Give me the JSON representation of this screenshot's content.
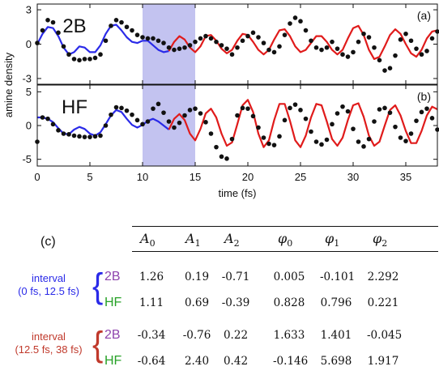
{
  "chart_data": [
    {
      "type": "line",
      "panel_label": "(a)",
      "tag": "2B",
      "xlim": [
        0,
        38
      ],
      "ylim": [
        -3.5,
        3.5
      ],
      "yticks": [
        -3,
        0,
        3
      ],
      "highlight_interval": [
        10,
        15
      ],
      "series": [
        {
          "color": "#2a2ae8",
          "x_range": [
            0,
            12.5
          ],
          "x": [
            0,
            0.5,
            1,
            1.5,
            2,
            2.5,
            3,
            3.5,
            4,
            4.5,
            5,
            5.5,
            6,
            6.5,
            7,
            7.5,
            8,
            8.5,
            9,
            9.5,
            10,
            10.5,
            11,
            11.5,
            12,
            12.5
          ],
          "y": [
            0,
            0.9,
            1.5,
            1.4,
            0.7,
            -0.3,
            -0.9,
            -0.7,
            -0.2,
            -0.3,
            -0.7,
            -0.7,
            -0.1,
            0.9,
            1.6,
            1.7,
            1.2,
            0.6,
            0.2,
            0.1,
            0.3,
            0.3,
            -0.1,
            -0.5,
            -0.7,
            -0.6
          ]
        },
        {
          "color": "#e01b1b",
          "x_range": [
            12.5,
            38
          ],
          "x": [
            12.5,
            13,
            13.5,
            14,
            14.5,
            15,
            15.5,
            16,
            16.5,
            17,
            17.5,
            18,
            18.5,
            19,
            19.5,
            20,
            20.5,
            21,
            21.5,
            22,
            22.5,
            23,
            23.5,
            24,
            24.5,
            25,
            25.5,
            26,
            26.5,
            27,
            27.5,
            28,
            28.5,
            29,
            29.5,
            30,
            30.5,
            31,
            31.5,
            32,
            32.5,
            33,
            33.5,
            34,
            34.5,
            35,
            35.5,
            36,
            36.5,
            37,
            37.5,
            38
          ],
          "y": [
            -0.6,
            0.2,
            0.7,
            0.4,
            -0.3,
            -0.7,
            -0.2,
            0.7,
            0.8,
            0.3,
            -0.4,
            -0.8,
            -0.5,
            0.3,
            0.9,
            0.8,
            0.2,
            -0.5,
            -0.9,
            -0.5,
            0.4,
            1.2,
            1.3,
            0.7,
            -0.2,
            -0.7,
            -0.5,
            0.1,
            0.7,
            0.7,
            0.2,
            -0.5,
            -0.9,
            -0.5,
            0.5,
            1.4,
            1.6,
            0.8,
            -0.5,
            -1.3,
            -1.1,
            -0.2,
            0.8,
            1.3,
            0.9,
            0.0,
            -0.8,
            -1.1,
            -0.5,
            0.5,
            1.1,
            1.2
          ]
        },
        {
          "color": "#111111",
          "marker": "dot",
          "x": [
            0,
            0.5,
            1,
            1.5,
            2,
            2.5,
            3,
            3.5,
            4,
            4.5,
            5,
            5.5,
            6,
            6.5,
            7,
            7.5,
            8,
            8.5,
            9,
            9.5,
            10,
            10.5,
            11,
            11.5,
            12,
            12.5,
            13,
            13.5,
            14,
            14.5,
            15,
            15.5,
            16,
            16.5,
            17,
            17.5,
            18,
            18.5,
            19,
            19.5,
            20,
            20.5,
            21,
            21.5,
            22,
            22.5,
            23,
            23.5,
            24,
            24.5,
            25,
            25.5,
            26,
            26.5,
            27,
            27.5,
            28,
            28.5,
            29,
            29.5,
            30,
            30.5,
            31,
            31.5,
            32,
            32.5,
            33,
            33.5,
            34,
            34.5,
            35,
            35.5,
            36,
            36.5,
            37,
            37.5,
            38
          ],
          "y": [
            0.1,
            1.2,
            2.1,
            1.9,
            1.0,
            -0.2,
            -0.9,
            -1.3,
            -1.4,
            -1.3,
            -1.3,
            -1.2,
            -0.9,
            0.3,
            1.6,
            2.1,
            1.9,
            1.5,
            1.2,
            0.8,
            0.6,
            0.5,
            0.5,
            0.3,
            0.1,
            -0.3,
            -0.5,
            -0.4,
            -0.3,
            -0.1,
            0.2,
            0.5,
            0.7,
            0.5,
            0.2,
            -0.1,
            -0.4,
            -0.9,
            -0.3,
            0.3,
            0.7,
            1.0,
            0.6,
            0.1,
            -0.5,
            -0.7,
            -0.2,
            0.8,
            1.8,
            2.3,
            2.0,
            1.2,
            0.3,
            -0.3,
            -0.5,
            -0.3,
            0.2,
            -0.4,
            -0.9,
            -1.1,
            -0.7,
            0.2,
            0.9,
            0.6,
            -0.3,
            -1.4,
            -2.3,
            -2.1,
            -1.0,
            0.4,
            0.9,
            0.3,
            -0.4,
            -0.9,
            -0.6,
            0.5,
            1.1
          ]
        }
      ]
    },
    {
      "type": "line",
      "panel_label": "(b)",
      "tag": "HF",
      "xlim": [
        0,
        38
      ],
      "ylim": [
        -6,
        6
      ],
      "yticks": [
        -5,
        0,
        5
      ],
      "xticks": [
        0,
        5,
        10,
        15,
        20,
        25,
        30,
        35
      ],
      "xlabel": "time (fs)",
      "shared_ylabel": "amine density",
      "highlight_interval": [
        10,
        15
      ],
      "series": [
        {
          "color": "#2a2ae8",
          "x_range": [
            0,
            12.5
          ],
          "x": [
            0,
            0.5,
            1,
            1.5,
            2,
            2.5,
            3,
            3.5,
            4,
            4.5,
            5,
            5.5,
            6,
            6.5,
            7,
            7.5,
            8,
            8.5,
            9,
            9.5,
            10,
            10.5,
            11,
            11.5,
            12,
            12.5
          ],
          "y": [
            1.2,
            1.2,
            1.0,
            0.5,
            -0.4,
            -1.2,
            -1.3,
            -0.6,
            -0.2,
            -0.5,
            -1.2,
            -1.5,
            -1.0,
            0.2,
            1.5,
            2.3,
            2.0,
            1.0,
            0.1,
            -0.3,
            0.1,
            0.7,
            1.0,
            0.6,
            0.0,
            -0.6
          ]
        },
        {
          "color": "#e01b1b",
          "x_range": [
            12.5,
            38
          ],
          "x": [
            12.5,
            13,
            13.5,
            14,
            14.5,
            15,
            15.5,
            16,
            16.5,
            17,
            17.5,
            18,
            18.5,
            19,
            19.5,
            20,
            20.5,
            21,
            21.5,
            22,
            22.5,
            23,
            23.5,
            24,
            24.5,
            25,
            25.5,
            26,
            26.5,
            27,
            27.5,
            28,
            28.5,
            29,
            29.5,
            30,
            30.5,
            31,
            31.5,
            32,
            32.5,
            33,
            33.5,
            34,
            34.5,
            35,
            35.5,
            36,
            36.5,
            37,
            37.5,
            38
          ],
          "y": [
            -0.6,
            1.0,
            1.7,
            0.8,
            -1.2,
            -2.2,
            -0.5,
            1.8,
            2.5,
            1.2,
            -1.2,
            -3.0,
            -2.5,
            0.2,
            3.0,
            3.8,
            2.0,
            -1.2,
            -3.2,
            -2.2,
            0.8,
            3.2,
            3.2,
            0.7,
            -2.2,
            -3.2,
            -1.5,
            1.2,
            3.2,
            3.0,
            0.6,
            -2.0,
            -3.0,
            -1.8,
            0.8,
            3.0,
            3.3,
            1.3,
            -1.5,
            -3.0,
            -2.4,
            0.0,
            2.3,
            3.0,
            1.5,
            -0.8,
            -2.6,
            -2.6,
            -0.8,
            1.5,
            2.8,
            2.4
          ]
        },
        {
          "color": "#111111",
          "marker": "dot",
          "x": [
            0,
            0.5,
            1,
            1.5,
            2,
            2.5,
            3,
            3.5,
            4,
            4.5,
            5,
            5.5,
            6,
            6.5,
            7,
            7.5,
            8,
            8.5,
            9,
            9.5,
            10,
            10.5,
            11,
            11.5,
            12,
            12.5,
            13,
            13.5,
            14,
            14.5,
            15,
            15.5,
            16,
            16.5,
            17,
            17.5,
            18,
            18.5,
            19,
            19.5,
            20,
            20.5,
            21,
            21.5,
            22,
            22.5,
            23,
            23.5,
            24,
            24.5,
            25,
            25.5,
            26,
            26.5,
            27,
            27.5,
            28,
            28.5,
            29,
            29.5,
            30,
            30.5,
            31,
            31.5,
            32,
            32.5,
            33,
            33.5,
            34,
            34.5,
            35,
            35.5,
            36,
            36.5,
            37,
            37.5,
            38
          ],
          "y": [
            -2.4,
            1.2,
            1.0,
            0.2,
            -0.7,
            -1.2,
            -1.3,
            -1.5,
            -1.6,
            -1.7,
            -1.7,
            -1.6,
            -1.5,
            0.0,
            1.6,
            2.7,
            2.6,
            2.2,
            1.6,
            0.8,
            0.2,
            0.6,
            2.5,
            3.2,
            1.9,
            0.6,
            -0.3,
            0.4,
            1.5,
            2.3,
            2.5,
            1.8,
            0.5,
            -1.2,
            -3.2,
            -4.6,
            -4.9,
            -2.0,
            1.5,
            2.6,
            2.5,
            1.4,
            -0.3,
            -1.8,
            -2.7,
            -2.9,
            -1.6,
            0.8,
            2.6,
            3.1,
            2.3,
            1.0,
            -0.9,
            -2.4,
            -2.8,
            -2.1,
            0.2,
            1.8,
            2.8,
            2.1,
            -0.5,
            -2.4,
            -3.1,
            -2.0,
            0.6,
            2.4,
            2.6,
            1.9,
            -0.2,
            -1.8,
            -2.3,
            -1.2,
            0.7,
            2.0,
            2.5,
            1.1,
            -0.6
          ]
        }
      ]
    },
    {
      "type": "table",
      "panel_label": "(c)",
      "columns": [
        "A",
        "A",
        "A",
        "φ",
        "φ",
        "φ"
      ],
      "column_subscripts": [
        "0",
        "1",
        "2",
        "0",
        "1",
        "2"
      ],
      "groups": [
        {
          "label_lines": [
            "interval",
            "(0 fs, 12.5 fs)"
          ],
          "color": "#2a2ae8",
          "rows": [
            {
              "method": "2B",
              "method_color": "#8e44ad",
              "values": [
                "1.26",
                "0.19",
                "-0.71",
                "0.005",
                "-0.101",
                "2.292"
              ]
            },
            {
              "method": "HF",
              "method_color": "#27a127",
              "values": [
                "1.11",
                "0.69",
                "-0.39",
                "0.828",
                "0.796",
                "0.221"
              ]
            }
          ]
        },
        {
          "label_lines": [
            "interval",
            "(12.5 fs, 38 fs)"
          ],
          "color": "#c0392b",
          "rows": [
            {
              "method": "2B",
              "method_color": "#8e44ad",
              "values": [
                "-0.34",
                "-0.76",
                "0.22",
                "1.633",
                "1.401",
                "-0.045"
              ]
            },
            {
              "method": "HF",
              "method_color": "#27a127",
              "values": [
                "-0.64",
                "2.40",
                "0.42",
                "-0.146",
                "5.698",
                "1.917"
              ]
            }
          ]
        }
      ]
    }
  ]
}
